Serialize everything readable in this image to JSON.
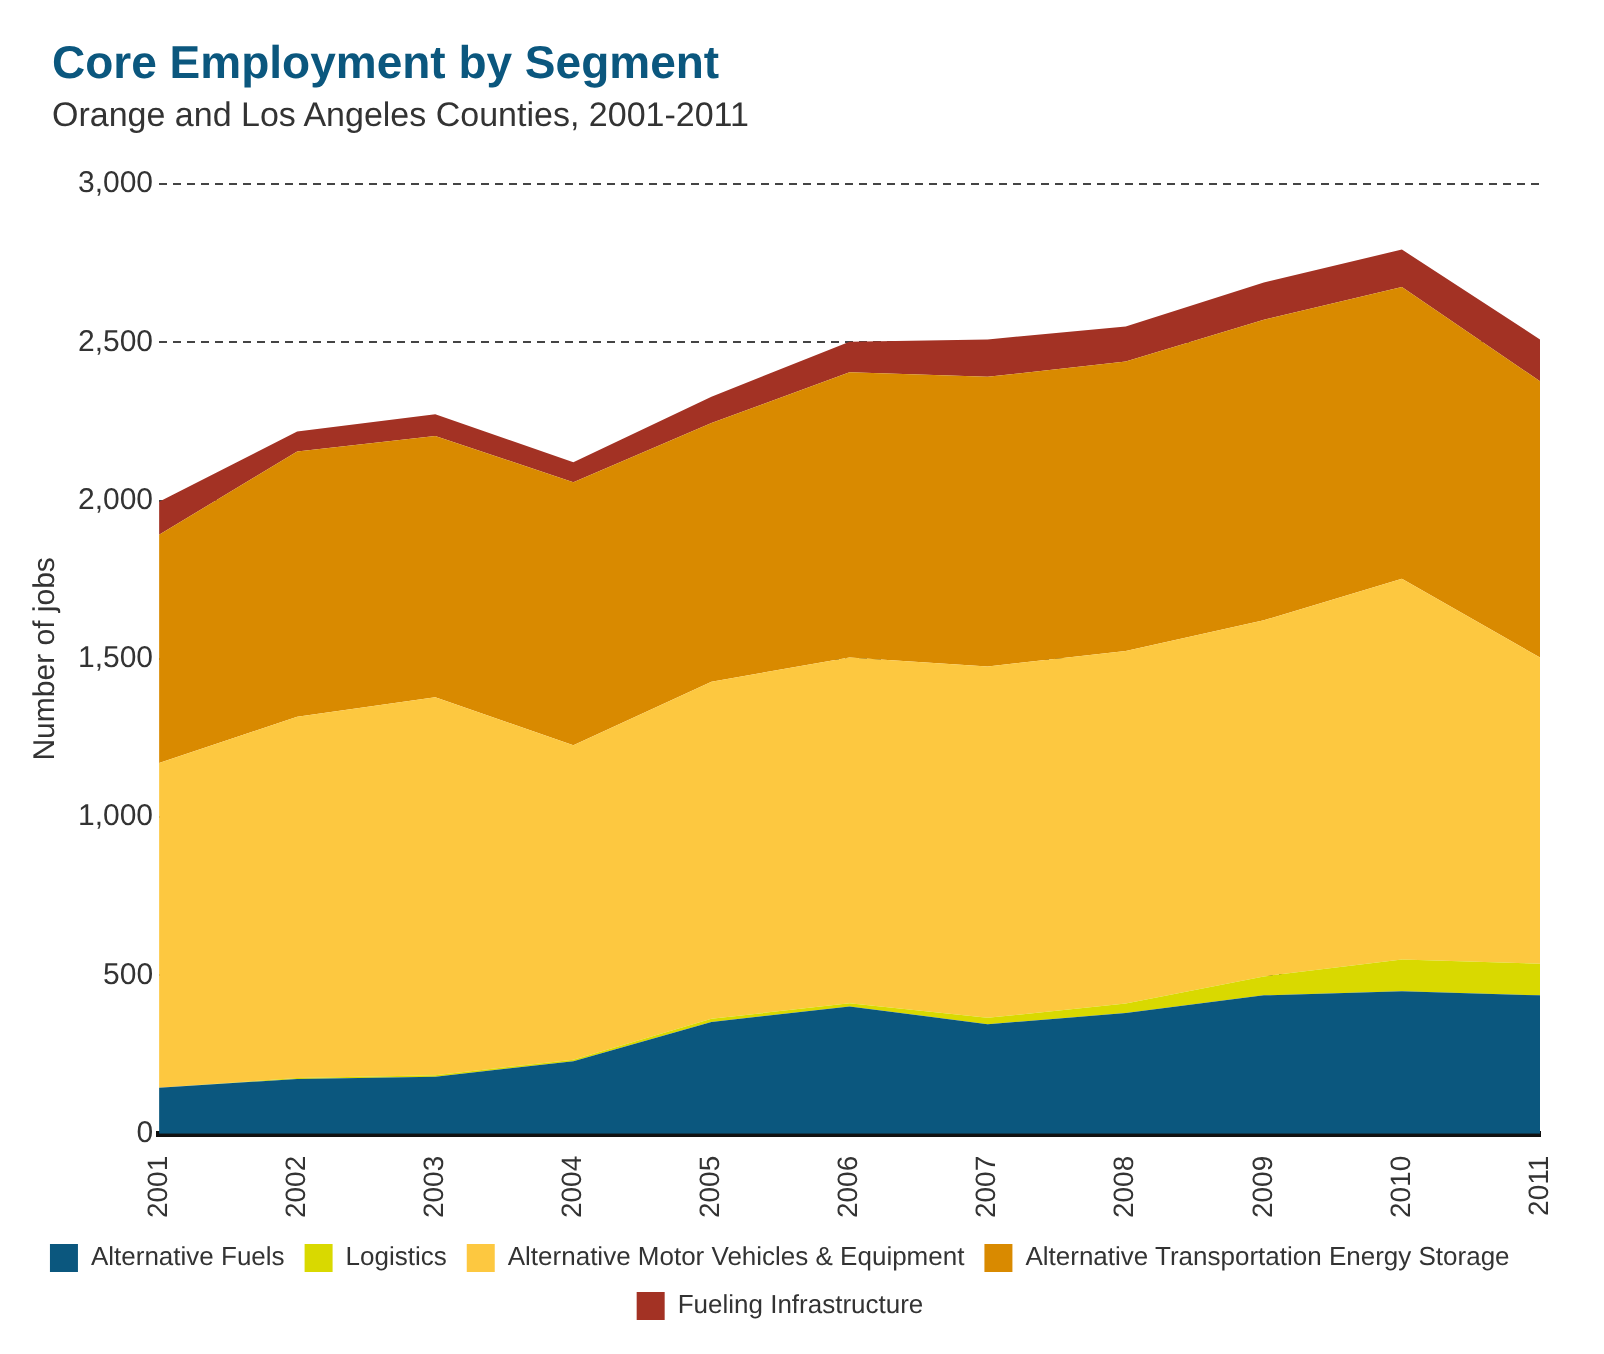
{
  "chart_data": {
    "type": "area",
    "title": "Core Employment by Segment",
    "subtitle": "Orange and Los Angeles Counties, 2001-2011",
    "ylabel": "Number of jobs",
    "categories": [
      "2001",
      "2002",
      "2003",
      "2004",
      "2005",
      "2006",
      "2007",
      "2008",
      "2009",
      "2010",
      "2011"
    ],
    "stacked": true,
    "series": [
      {
        "name": "Alternative Fuels",
        "color": "#0b577e",
        "values": [
          145,
          173,
          180,
          229,
          353,
          402,
          346,
          381,
          437,
          450,
          437
        ]
      },
      {
        "name": "Logistics",
        "color": "#d9d900",
        "values": [
          0,
          3,
          5,
          5,
          10,
          10,
          20,
          30,
          60,
          100,
          100
        ]
      },
      {
        "name": "Alternative Motor Vehicles & Equipment",
        "color": "#fdc840",
        "values": [
          1026,
          1141,
          1194,
          993,
          1065,
          1092,
          1110,
          1114,
          1125,
          1203,
          967
        ]
      },
      {
        "name": "Alternative Transportation Energy Storage",
        "color": "#d98a00",
        "values": [
          721,
          838,
          825,
          831,
          817,
          901,
          915,
          914,
          949,
          922,
          873
        ]
      },
      {
        "name": "Fueling Infrastructure",
        "color": "#a33224",
        "values": [
          104,
          63,
          69,
          63,
          83,
          97,
          118,
          111,
          118,
          118,
          132
        ]
      }
    ],
    "ylim": [
      0,
      3000
    ],
    "yticks": [
      {
        "value": 0,
        "label": "0"
      },
      {
        "value": 500,
        "label": "500"
      },
      {
        "value": 1000,
        "label": "1,000"
      },
      {
        "value": 1500,
        "label": "1,500"
      },
      {
        "value": 2000,
        "label": "2,000"
      },
      {
        "value": 2500,
        "label": "2,500"
      },
      {
        "value": 3000,
        "label": "3,000"
      }
    ],
    "grid": "y",
    "line_style": "dashed",
    "legend": "bottom"
  }
}
